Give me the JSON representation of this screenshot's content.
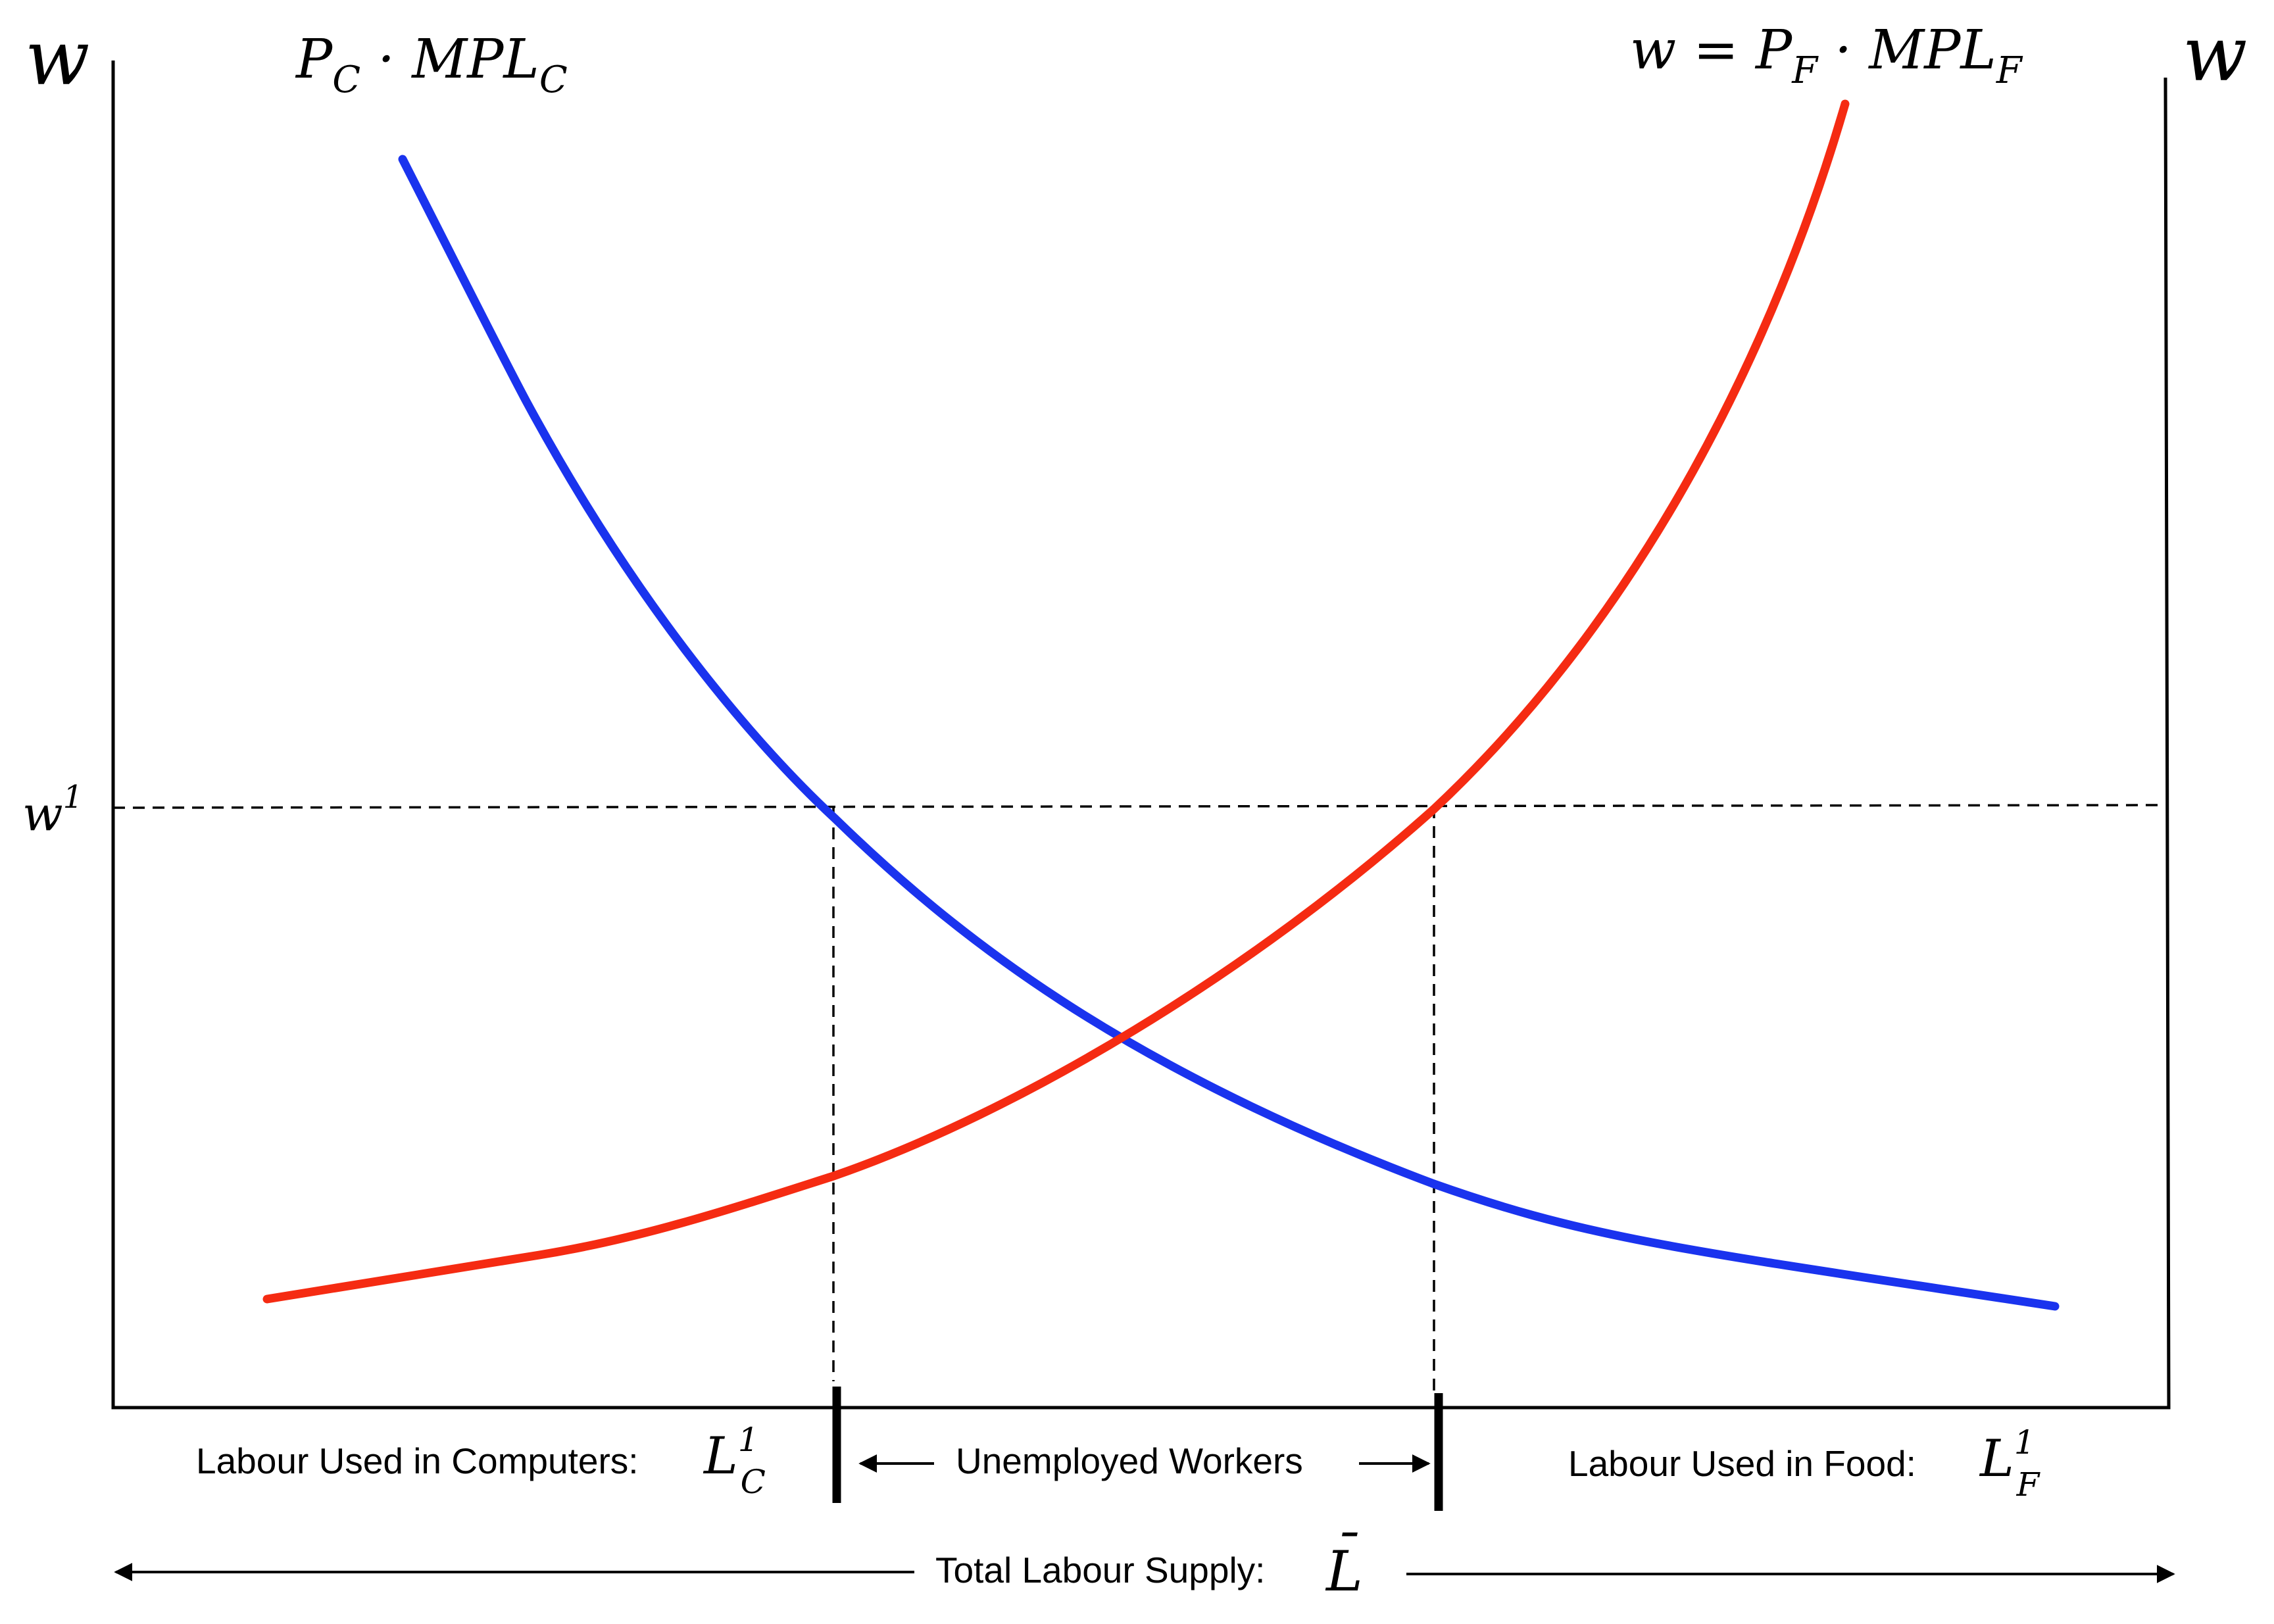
{
  "axes": {
    "left_axis_label": "w",
    "right_axis_label": "w"
  },
  "curves": {
    "computers_label_base": "P",
    "computers_label_sub": "C",
    "computers_label_mid": " · MPL",
    "computers_label_sub2": "C",
    "food_label_prefix": "w = P",
    "food_label_sub": "F",
    "food_label_mid": " · MPL",
    "food_label_sub2": "F",
    "computers_color": "#1a33ee",
    "food_color": "#f52b12"
  },
  "wage_line": {
    "label_base": "w",
    "label_sup": "1"
  },
  "segments": {
    "computers_text": "Labour Used in Computers:",
    "computers_symbol_base": "L",
    "computers_symbol_sup": "1",
    "computers_symbol_sub": "C",
    "unemployed_text": "Unemployed Workers",
    "food_text": "Labour Used in Food:",
    "food_symbol_base": "L",
    "food_symbol_sup": "1",
    "food_symbol_sub": "F"
  },
  "total": {
    "text": "Total Labour Supply:",
    "symbol": "L",
    "symbol_bar": "¯"
  }
}
